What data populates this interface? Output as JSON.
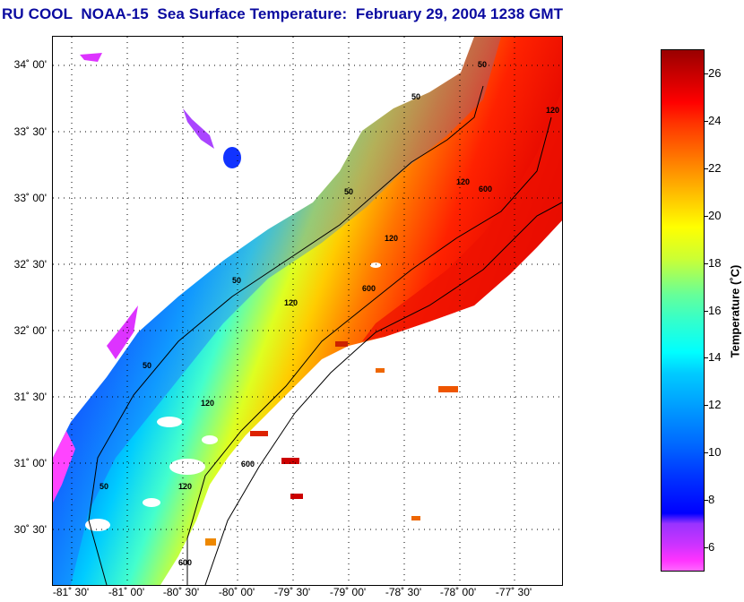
{
  "title": "RU COOL  NOAA-15  Sea Surface Temperature:  February 29, 2004 1238 GMT",
  "latitude_labels": [
    "34˚ 00'",
    "33˚ 30'",
    "33˚ 00'",
    "32˚ 30'",
    "32˚ 00'",
    "31˚ 30'",
    "31˚ 00'",
    "30˚ 30'"
  ],
  "longitude_labels": [
    "-81˚ 30'",
    "-81˚ 00'",
    "-80˚ 30'",
    "-80˚ 00'",
    "-79˚ 30'",
    "-79˚ 00'",
    "-78˚ 30'",
    "-78˚ 00'",
    "-77˚ 30'"
  ],
  "contour_labels": [
    "50",
    "50",
    "50",
    "50",
    "50",
    "50",
    "120",
    "120",
    "120",
    "120",
    "120",
    "120",
    "600",
    "600",
    "600",
    "600"
  ],
  "colorbar": {
    "label": "Temperature (˚C)",
    "ticks": [
      "26",
      "24",
      "22",
      "20",
      "18",
      "16",
      "14",
      "12",
      "10",
      "8",
      "6"
    ],
    "min": 5,
    "max": 27
  },
  "colors": {
    "title": "#0a0aa0",
    "land": "#ffffff",
    "cloud": "#ffffff"
  }
}
